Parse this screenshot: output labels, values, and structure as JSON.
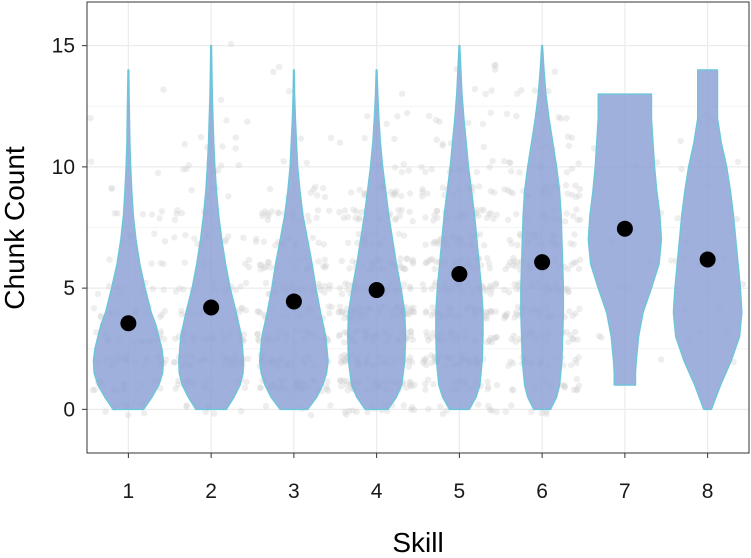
{
  "chart_data": {
    "type": "violin",
    "xlabel": "Skill",
    "ylabel": "Chunk Count",
    "categories": [
      "1",
      "2",
      "3",
      "4",
      "5",
      "6",
      "7",
      "8"
    ],
    "ylim": [
      -1.8,
      16.8
    ],
    "yticks": [
      0,
      5,
      10,
      15
    ],
    "grid": true,
    "legend": "none",
    "means": [
      3.55,
      4.2,
      4.45,
      4.92,
      5.58,
      6.07,
      7.45,
      6.18
    ],
    "distributions": [
      {
        "min": 0,
        "max": 14,
        "density": [
          [
            0,
            0.4
          ],
          [
            0.5,
            0.62
          ],
          [
            1,
            0.8
          ],
          [
            1.5,
            0.9
          ],
          [
            2,
            0.92
          ],
          [
            2.5,
            0.88
          ],
          [
            3,
            0.8
          ],
          [
            3.5,
            0.72
          ],
          [
            4,
            0.6
          ],
          [
            5,
            0.44
          ],
          [
            6,
            0.3
          ],
          [
            7,
            0.2
          ],
          [
            8,
            0.13
          ],
          [
            9,
            0.09
          ],
          [
            10,
            0.06
          ],
          [
            11,
            0.04
          ],
          [
            12,
            0.03
          ],
          [
            13,
            0.02
          ],
          [
            14,
            0.01
          ]
        ]
      },
      {
        "min": 0,
        "max": 15,
        "density": [
          [
            0,
            0.4
          ],
          [
            0.5,
            0.6
          ],
          [
            1,
            0.76
          ],
          [
            1.5,
            0.84
          ],
          [
            2,
            0.85
          ],
          [
            3,
            0.8
          ],
          [
            4,
            0.66
          ],
          [
            5,
            0.5
          ],
          [
            6,
            0.38
          ],
          [
            7,
            0.28
          ],
          [
            8,
            0.2
          ],
          [
            9,
            0.14
          ],
          [
            10,
            0.1
          ],
          [
            11,
            0.07
          ],
          [
            12,
            0.05
          ],
          [
            13,
            0.03
          ],
          [
            14,
            0.02
          ],
          [
            15,
            0.01
          ]
        ]
      },
      {
        "min": 0,
        "max": 14,
        "density": [
          [
            0,
            0.36
          ],
          [
            0.5,
            0.6
          ],
          [
            1,
            0.76
          ],
          [
            1.5,
            0.86
          ],
          [
            2,
            0.9
          ],
          [
            3,
            0.84
          ],
          [
            4,
            0.7
          ],
          [
            5,
            0.58
          ],
          [
            6,
            0.48
          ],
          [
            7,
            0.36
          ],
          [
            8,
            0.24
          ],
          [
            9,
            0.16
          ],
          [
            10,
            0.1
          ],
          [
            11,
            0.07
          ],
          [
            12,
            0.04
          ],
          [
            13,
            0.02
          ],
          [
            14,
            0.01
          ]
        ]
      },
      {
        "min": 0,
        "max": 14,
        "density": [
          [
            0,
            0.3
          ],
          [
            0.5,
            0.52
          ],
          [
            1,
            0.66
          ],
          [
            2,
            0.74
          ],
          [
            3,
            0.76
          ],
          [
            4,
            0.74
          ],
          [
            5,
            0.64
          ],
          [
            6,
            0.52
          ],
          [
            7,
            0.42
          ],
          [
            8,
            0.32
          ],
          [
            9,
            0.24
          ],
          [
            10,
            0.16
          ],
          [
            11,
            0.1
          ],
          [
            12,
            0.06
          ],
          [
            13,
            0.03
          ],
          [
            14,
            0.01
          ]
        ]
      },
      {
        "min": 0,
        "max": 15,
        "density": [
          [
            0,
            0.26
          ],
          [
            0.5,
            0.44
          ],
          [
            1,
            0.54
          ],
          [
            2,
            0.6
          ],
          [
            3,
            0.62
          ],
          [
            4,
            0.62
          ],
          [
            5,
            0.58
          ],
          [
            6,
            0.52
          ],
          [
            7,
            0.46
          ],
          [
            8,
            0.4
          ],
          [
            9,
            0.32
          ],
          [
            10,
            0.24
          ],
          [
            11,
            0.18
          ],
          [
            12,
            0.12
          ],
          [
            13,
            0.07
          ],
          [
            14,
            0.04
          ],
          [
            15,
            0.01
          ]
        ]
      },
      {
        "min": 0,
        "max": 15,
        "density": [
          [
            0,
            0.22
          ],
          [
            0.5,
            0.38
          ],
          [
            1,
            0.46
          ],
          [
            2,
            0.52
          ],
          [
            3,
            0.54
          ],
          [
            4,
            0.56
          ],
          [
            5,
            0.56
          ],
          [
            6,
            0.54
          ],
          [
            7,
            0.52
          ],
          [
            8,
            0.5
          ],
          [
            9,
            0.46
          ],
          [
            10,
            0.38
          ],
          [
            11,
            0.28
          ],
          [
            12,
            0.18
          ],
          [
            13,
            0.1
          ],
          [
            14,
            0.05
          ],
          [
            15,
            0.01
          ]
        ]
      },
      {
        "min": 1,
        "max": 13,
        "density": [
          [
            1,
            0.28
          ],
          [
            1.5,
            0.28
          ],
          [
            2,
            0.3
          ],
          [
            3,
            0.36
          ],
          [
            4,
            0.48
          ],
          [
            5,
            0.7
          ],
          [
            6,
            0.9
          ],
          [
            7,
            0.96
          ],
          [
            8,
            0.92
          ],
          [
            9,
            0.84
          ],
          [
            10,
            0.78
          ],
          [
            11,
            0.74
          ],
          [
            12,
            0.7
          ],
          [
            13,
            0.7
          ]
        ]
      },
      {
        "min": 0,
        "max": 14,
        "density": [
          [
            0,
            0.1
          ],
          [
            1,
            0.34
          ],
          [
            2,
            0.62
          ],
          [
            3,
            0.84
          ],
          [
            4,
            0.9
          ],
          [
            5,
            0.86
          ],
          [
            6,
            0.8
          ],
          [
            7,
            0.74
          ],
          [
            8,
            0.68
          ],
          [
            9,
            0.6
          ],
          [
            10,
            0.5
          ],
          [
            11,
            0.36
          ],
          [
            12,
            0.26
          ],
          [
            13,
            0.26
          ],
          [
            14,
            0.26
          ]
        ]
      }
    ],
    "colors": {
      "violin_fill": "#8fa2d6",
      "violin_stroke": "#6cc6da",
      "mean_point": "#000000",
      "jitter_points": "#cfcfcf",
      "grid": "#ececec",
      "panel_border": "#333333"
    }
  }
}
